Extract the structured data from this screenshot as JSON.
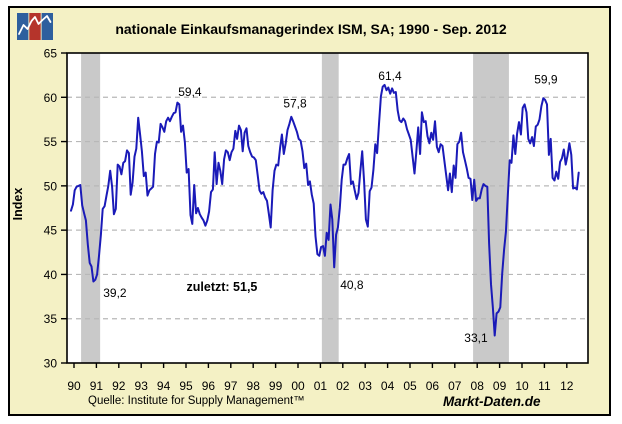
{
  "window": {
    "title": "nationale Einkaufsmanagerindex ISM, SA; 1990 - Sep. 2012"
  },
  "footer": {
    "source": "Quelle: Institute for Supply Management™",
    "brand": "Markt-Daten.de"
  },
  "colors": {
    "panel_background": "#F4F1C5",
    "plot_background": "#FFFFFF",
    "line": "#1A1AB8",
    "recession_band": "#C9C9C9",
    "gridline": "#B8B8B8",
    "text": "#000000",
    "logo_blue": "#2E5F9E",
    "logo_red": "#B5342B"
  },
  "chart_data": {
    "type": "line",
    "title": "nationale Einkaufsmanagerindex ISM, SA; 1990 - Sep. 2012",
    "xlabel": "",
    "ylabel": "Index",
    "ylim": [
      30,
      65
    ],
    "yticks": [
      30,
      35,
      40,
      45,
      50,
      55,
      60,
      65
    ],
    "grid_yticks": [
      35,
      40,
      45,
      50,
      55,
      60
    ],
    "xtick_years": [
      1990,
      1991,
      1992,
      1993,
      1994,
      1995,
      1996,
      1997,
      1998,
      1999,
      2000,
      2001,
      2002,
      2003,
      2004,
      2005,
      2006,
      2007,
      2008,
      2009,
      2010,
      2011,
      2012
    ],
    "xtick_labels": [
      "90",
      "91",
      "92",
      "93",
      "94",
      "95",
      "96",
      "97",
      "98",
      "99",
      "00",
      "01",
      "02",
      "03",
      "04",
      "05",
      "06",
      "07",
      "08",
      "09",
      "10",
      "11",
      "12"
    ],
    "grid": "horizontal-dashed",
    "legend_position": "none",
    "recession_bands": [
      {
        "start": 1990.45,
        "end": 1991.3
      },
      {
        "start": 2001.2,
        "end": 2001.95
      },
      {
        "start": 2007.95,
        "end": 2009.55
      }
    ],
    "annotations": [
      {
        "text": "59,4",
        "year": 1995.31,
        "value": 60.6,
        "bold": false
      },
      {
        "text": "57,8",
        "year": 2000.0,
        "value": 59.3,
        "bold": false
      },
      {
        "text": "61,4",
        "year": 2004.24,
        "value": 62.4,
        "bold": false
      },
      {
        "text": "59,9",
        "year": 2011.2,
        "value": 62.0,
        "bold": false
      },
      {
        "text": "39,2",
        "year": 1991.96,
        "value": 37.9,
        "bold": false
      },
      {
        "text": "zuletzt: 51,5",
        "year": 1996.74,
        "value": 38.6,
        "bold": true
      },
      {
        "text": "40,8",
        "year": 2002.54,
        "value": 38.8,
        "bold": false
      },
      {
        "text": "33,1",
        "year": 2008.08,
        "value": 32.8,
        "bold": false
      }
    ],
    "series": [
      {
        "name": "ISM Einkaufsmanagerindex (SA)",
        "start": "1990-01",
        "end": "2012-09",
        "frequency": "monthly",
        "values": [
          47.2,
          47.9,
          49.5,
          49.9,
          50.0,
          50.1,
          47.8,
          46.9,
          46.1,
          43.4,
          41.3,
          40.9,
          39.2,
          39.4,
          40.0,
          42.1,
          44.5,
          47.4,
          47.7,
          48.9,
          50.0,
          51.7,
          49.9,
          46.8,
          47.4,
          52.4,
          52.2,
          51.3,
          52.6,
          52.8,
          54.0,
          53.7,
          49.0,
          50.4,
          53.3,
          54.2,
          57.7,
          55.8,
          53.9,
          51.1,
          51.5,
          48.9,
          49.5,
          49.7,
          49.9,
          53.6,
          55.0,
          54.9,
          57.0,
          56.6,
          56.1,
          57.3,
          57.7,
          57.3,
          57.8,
          58.2,
          58.3,
          59.4,
          59.2,
          56.1,
          56.8,
          54.9,
          51.5,
          51.9,
          46.7,
          45.7,
          50.1,
          46.9,
          47.5,
          46.8,
          46.4,
          46.1,
          45.5,
          46.1,
          47.1,
          49.3,
          49.6,
          53.8,
          50.2,
          52.6,
          51.7,
          50.2,
          53.0,
          54.0,
          53.8,
          52.9,
          53.8,
          54.2,
          56.2,
          55.3,
          56.8,
          56.3,
          53.9,
          56.0,
          56.5,
          54.5,
          53.8,
          53.3,
          53.2,
          52.9,
          51.2,
          49.5,
          49.1,
          49.3,
          48.7,
          48.3,
          46.8,
          45.3,
          49.5,
          51.7,
          52.4,
          52.3,
          54.3,
          55.8,
          53.6,
          54.8,
          56.3,
          57.0,
          57.8,
          57.3,
          56.7,
          56.1,
          55.3,
          55.1,
          53.9,
          52.0,
          52.5,
          50.1,
          50.5,
          49.0,
          48.0,
          44.3,
          42.3,
          42.1,
          43.1,
          43.2,
          42.1,
          44.7,
          43.9,
          47.9,
          46.2,
          40.8,
          44.5,
          45.3,
          47.5,
          50.7,
          52.4,
          52.4,
          53.1,
          53.6,
          50.2,
          50.5,
          49.5,
          48.5,
          49.2,
          51.6,
          53.9,
          50.5,
          46.2,
          45.4,
          49.4,
          49.8,
          51.8,
          54.7,
          53.7,
          57.0,
          60.1,
          61.2,
          61.4,
          60.8,
          61.1,
          60.4,
          61.0,
          60.5,
          60.6,
          58.5,
          57.4,
          57.2,
          57.6,
          57.3,
          56.4,
          55.8,
          55.2,
          53.3,
          51.4,
          53.8,
          56.6,
          53.6,
          58.3,
          57.2,
          57.3,
          55.6,
          54.8,
          56.0,
          55.2,
          57.3,
          54.4,
          53.8,
          54.7,
          54.5,
          52.9,
          51.2,
          49.5,
          51.4,
          49.3,
          52.3,
          50.9,
          54.7,
          55.0,
          56.0,
          53.8,
          52.9,
          52.0,
          50.9,
          50.8,
          48.4,
          50.7,
          48.3,
          48.6,
          48.6,
          49.6,
          50.2,
          50.0,
          49.9,
          43.5,
          38.9,
          36.2,
          33.1,
          35.6,
          35.8,
          36.3,
          40.1,
          42.8,
          44.8,
          48.9,
          52.9,
          52.6,
          55.7,
          53.6,
          55.9,
          57.2,
          55.8,
          58.8,
          59.2,
          58.3,
          55.3,
          54.8,
          55.5,
          54.5,
          56.7,
          56.9,
          57.5,
          59.0,
          59.9,
          59.7,
          59.2,
          53.5,
          55.3,
          50.9,
          50.6,
          51.6,
          50.8,
          52.7,
          53.1,
          54.1,
          52.4,
          53.4,
          54.8,
          53.5,
          49.7,
          49.8,
          49.6,
          51.5
        ]
      }
    ],
    "last_value": 51.5,
    "last_value_label": "zuletzt: 51,5"
  }
}
